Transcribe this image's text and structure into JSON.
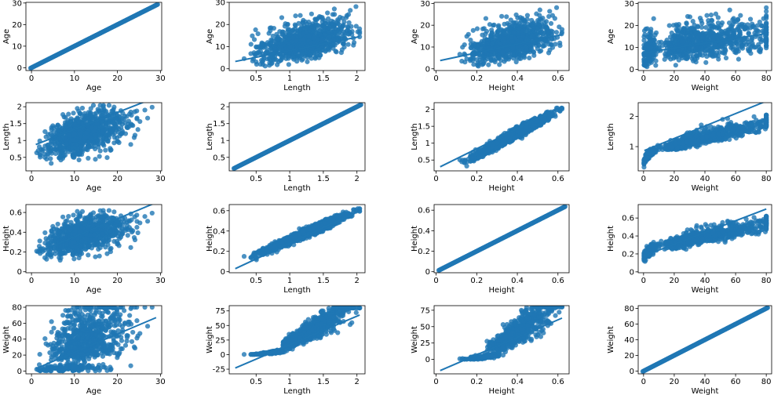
{
  "figure": {
    "layout": "4x4 pairplot",
    "variables": [
      "Age",
      "Length",
      "Height",
      "Weight"
    ],
    "colors": {
      "series": "#1f77b4",
      "axis": "#000000",
      "background": "#ffffff"
    }
  },
  "chart_data": {
    "type": "scatter",
    "subtype": "regplot pair grid",
    "grid": false,
    "rows": [
      "Age",
      "Length",
      "Height",
      "Weight"
    ],
    "cols": [
      "Age",
      "Length",
      "Height",
      "Weight"
    ],
    "variables": {
      "Age": {
        "ticks": [
          0,
          10,
          20,
          30
        ],
        "lim": [
          0,
          30
        ]
      },
      "Length": {
        "ticks": [
          0.5,
          1.0,
          1.5,
          2.0
        ],
        "lim": [
          0.15,
          2.1
        ]
      },
      "Height": {
        "ticks": [
          0.0,
          0.2,
          0.4,
          0.6
        ],
        "lim": [
          0,
          0.65
        ]
      },
      "Weight": {
        "ticks": [
          0,
          20,
          40,
          60,
          80
        ],
        "lim": [
          0,
          82
        ]
      }
    },
    "panel_ticks": [
      {
        "row": "Age",
        "col": "Age",
        "yticks": [
          0,
          10,
          20,
          30
        ],
        "xticks": [
          0,
          10,
          20,
          30
        ]
      },
      {
        "row": "Length",
        "col": "Age",
        "yticks": [
          0.5,
          1.0,
          1.5,
          2.0
        ],
        "xticks": [
          0,
          10,
          20,
          30
        ]
      },
      {
        "row": "Height",
        "col": "Age",
        "yticks": [
          0.0,
          0.2,
          0.4,
          0.6
        ],
        "xticks": [
          0,
          10,
          20,
          30
        ]
      },
      {
        "row": "Weight",
        "col": "Age",
        "yticks": [
          0,
          20,
          40,
          60,
          80
        ],
        "xticks": [
          0,
          10,
          20,
          30
        ]
      },
      {
        "row": "Age",
        "col": "Length",
        "yticks": [
          0,
          10,
          20,
          30
        ],
        "xticks": [
          0.5,
          1.0,
          1.5,
          2.0
        ]
      },
      {
        "row": "Length",
        "col": "Length",
        "yticks": [
          0.5,
          1.0,
          1.5,
          2.0
        ],
        "xticks": [
          0.5,
          1.0,
          1.5,
          2.0
        ]
      },
      {
        "row": "Height",
        "col": "Length",
        "yticks": [
          0.0,
          0.2,
          0.4,
          0.6
        ],
        "xticks": [
          0.5,
          1.0,
          1.5,
          2.0
        ]
      },
      {
        "row": "Weight",
        "col": "Length",
        "yticks": [
          -25,
          0,
          25,
          50,
          75
        ],
        "xticks": [
          0.5,
          1.0,
          1.5,
          2.0
        ]
      },
      {
        "row": "Age",
        "col": "Height",
        "yticks": [
          0,
          10,
          20,
          30
        ],
        "xticks": [
          0.0,
          0.2,
          0.4,
          0.6
        ]
      },
      {
        "row": "Length",
        "col": "Height",
        "yticks": [
          0.5,
          1.0,
          1.5,
          2.0
        ],
        "xticks": [
          0.0,
          0.2,
          0.4,
          0.6
        ]
      },
      {
        "row": "Height",
        "col": "Height",
        "yticks": [
          0.0,
          0.2,
          0.4,
          0.6
        ],
        "xticks": [
          0.0,
          0.2,
          0.4,
          0.6
        ]
      },
      {
        "row": "Weight",
        "col": "Height",
        "yticks": [
          0,
          25,
          50,
          75
        ],
        "xticks": [
          0.0,
          0.2,
          0.4,
          0.6
        ]
      },
      {
        "row": "Age",
        "col": "Weight",
        "yticks": [
          0,
          10,
          20,
          30
        ],
        "xticks": [
          0,
          20,
          40,
          60,
          80
        ]
      },
      {
        "row": "Length",
        "col": "Weight",
        "yticks": [
          1,
          2
        ],
        "xticks": [
          0,
          20,
          40,
          60,
          80
        ]
      },
      {
        "row": "Height",
        "col": "Weight",
        "yticks": [
          0.0,
          0.2,
          0.4,
          0.6
        ],
        "xticks": [
          0,
          20,
          40,
          60,
          80
        ]
      },
      {
        "row": "Weight",
        "col": "Weight",
        "yticks": [
          0,
          20,
          40,
          60,
          80
        ],
        "xticks": [
          0,
          20,
          40,
          60,
          80
        ]
      }
    ],
    "regression_lines": [
      {
        "row": "Age",
        "col": "Age",
        "from": [
          1,
          1
        ],
        "to": [
          29,
          29
        ]
      },
      {
        "row": "Length",
        "col": "Age",
        "from": [
          1,
          0.88
        ],
        "to": [
          29,
          2.28
        ]
      },
      {
        "row": "Height",
        "col": "Age",
        "from": [
          1,
          0.19
        ],
        "to": [
          29,
          0.7
        ]
      },
      {
        "row": "Weight",
        "col": "Age",
        "from": [
          1,
          3
        ],
        "to": [
          29,
          67
        ]
      },
      {
        "row": "Age",
        "col": "Length",
        "from": [
          0.19,
          3.3
        ],
        "to": [
          2.04,
          14.5
        ]
      },
      {
        "row": "Length",
        "col": "Length",
        "from": [
          0.19,
          0.19
        ],
        "to": [
          2.04,
          2.04
        ]
      },
      {
        "row": "Height",
        "col": "Length",
        "from": [
          0.19,
          0.03
        ],
        "to": [
          2.04,
          0.6
        ]
      },
      {
        "row": "Weight",
        "col": "Length",
        "from": [
          0.19,
          -23
        ],
        "to": [
          2.04,
          68
        ]
      },
      {
        "row": "Age",
        "col": "Height",
        "from": [
          0.02,
          3.8
        ],
        "to": [
          0.62,
          15.7
        ]
      },
      {
        "row": "Length",
        "col": "Height",
        "from": [
          0.02,
          0.3
        ],
        "to": [
          0.62,
          2.08
        ]
      },
      {
        "row": "Height",
        "col": "Height",
        "from": [
          0.02,
          0.02
        ],
        "to": [
          0.62,
          0.62
        ]
      },
      {
        "row": "Weight",
        "col": "Height",
        "from": [
          0.02,
          -17
        ],
        "to": [
          0.62,
          63
        ]
      },
      {
        "row": "Age",
        "col": "Weight",
        "from": [
          0.5,
          7.6
        ],
        "to": [
          80,
          16.3
        ]
      },
      {
        "row": "Length",
        "col": "Weight",
        "from": [
          0.5,
          0.87
        ],
        "to": [
          80,
          2.5
        ]
      },
      {
        "row": "Height",
        "col": "Weight",
        "from": [
          0.5,
          0.18
        ],
        "to": [
          80,
          0.7
        ]
      },
      {
        "row": "Weight",
        "col": "Weight",
        "from": [
          0.5,
          0.5
        ],
        "to": [
          80,
          80
        ]
      }
    ]
  }
}
